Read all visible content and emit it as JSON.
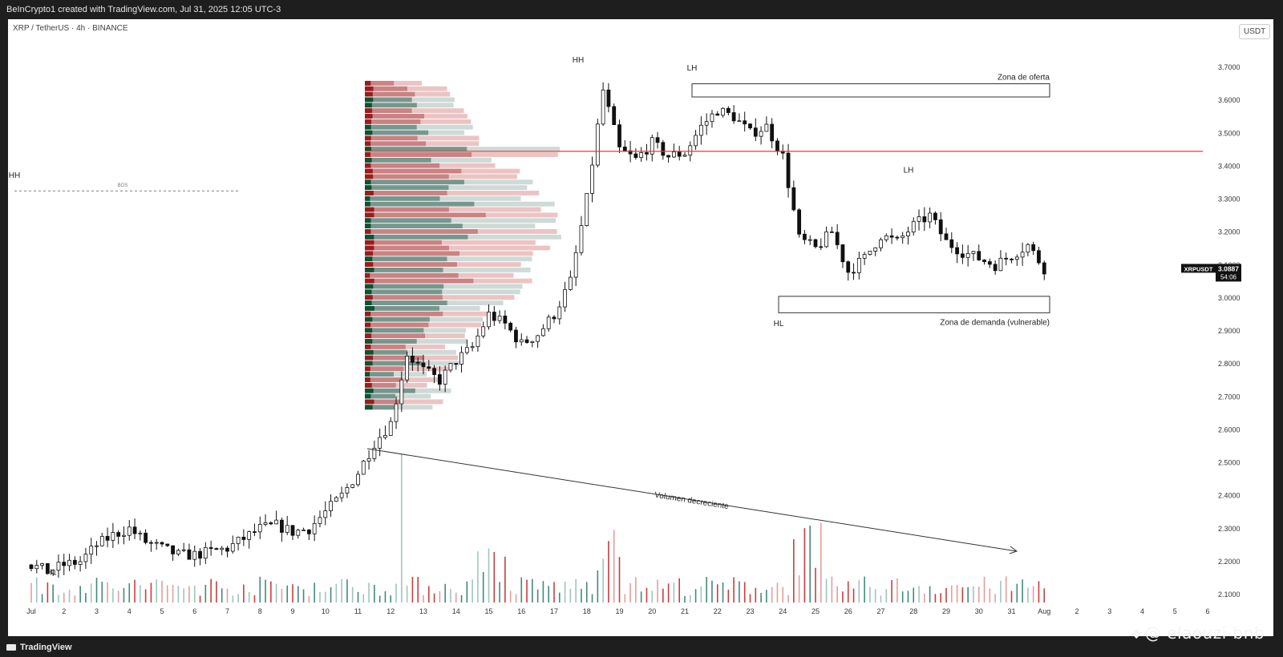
{
  "header": {
    "attribution": "BeInCrypto1 created with TradingView.com, Jul 31, 2025 12:05 UTC-3"
  },
  "symbol": {
    "label": "XRP / TetherUS · 4h · BINANCE",
    "currency_button": "USDT"
  },
  "price_tag": {
    "ticker": "XRPUSDT",
    "price": "3.0887",
    "countdown": "54:06"
  },
  "footer": {
    "brand": "TradingView"
  },
  "watermark": {
    "text": "@ elaouzi-bnb",
    "icon": "sparkle-icon"
  },
  "colors": {
    "up": "#2e7d6e",
    "down": "#c62828",
    "candle_body": "#111111",
    "resistance_line": "#e53935",
    "profile_green_dark": "#0f5132",
    "profile_red_dark": "#9b1c1c"
  },
  "chart_data": {
    "type": "candlestick",
    "timeframe": "4h",
    "yaxis": {
      "ticks": [
        "3.7000",
        "3.6000",
        "3.5000",
        "3.4000",
        "3.3000",
        "3.2000",
        "3.1000",
        "3.0000",
        "2.9000",
        "2.8000",
        "2.7000",
        "2.6000",
        "2.5000",
        "2.4000",
        "2.3000",
        "2.2000",
        "2.1000"
      ],
      "range": [
        2.08,
        3.72
      ]
    },
    "xaxis": {
      "ticks": [
        "Jul",
        "2",
        "3",
        "4",
        "5",
        "6",
        "7",
        "8",
        "9",
        "10",
        "11",
        "12",
        "13",
        "14",
        "15",
        "16",
        "17",
        "18",
        "19",
        "20",
        "21",
        "22",
        "23",
        "24",
        "25",
        "26",
        "27",
        "28",
        "29",
        "30",
        "31",
        "Aug",
        "2",
        "3",
        "4",
        "5",
        "6"
      ],
      "range_days": [
        0,
        37.5
      ]
    },
    "price_close_approx": [
      [
        0.0,
        2.19
      ],
      [
        0.5,
        2.17
      ],
      [
        1.0,
        2.19
      ],
      [
        1.5,
        2.2
      ],
      [
        2.0,
        2.25
      ],
      [
        2.5,
        2.28
      ],
      [
        3.0,
        2.3
      ],
      [
        3.5,
        2.26
      ],
      [
        4.0,
        2.24
      ],
      [
        4.5,
        2.22
      ],
      [
        5.0,
        2.22
      ],
      [
        5.5,
        2.23
      ],
      [
        6.0,
        2.24
      ],
      [
        6.5,
        2.27
      ],
      [
        7.0,
        2.3
      ],
      [
        7.5,
        2.31
      ],
      [
        8.0,
        2.29
      ],
      [
        8.5,
        2.3
      ],
      [
        9.0,
        2.35
      ],
      [
        9.5,
        2.4
      ],
      [
        10.0,
        2.47
      ],
      [
        10.5,
        2.56
      ],
      [
        11.0,
        2.62
      ],
      [
        11.5,
        2.83
      ],
      [
        12.0,
        2.78
      ],
      [
        12.5,
        2.75
      ],
      [
        13.0,
        2.81
      ],
      [
        13.5,
        2.85
      ],
      [
        14.0,
        2.95
      ],
      [
        14.5,
        2.92
      ],
      [
        15.0,
        2.86
      ],
      [
        15.5,
        2.89
      ],
      [
        16.0,
        2.95
      ],
      [
        16.5,
        3.05
      ],
      [
        17.0,
        3.3
      ],
      [
        17.5,
        3.63
      ],
      [
        18.0,
        3.45
      ],
      [
        18.5,
        3.42
      ],
      [
        19.0,
        3.47
      ],
      [
        19.5,
        3.43
      ],
      [
        20.0,
        3.44
      ],
      [
        20.5,
        3.52
      ],
      [
        21.0,
        3.57
      ],
      [
        21.5,
        3.55
      ],
      [
        22.0,
        3.5
      ],
      [
        22.5,
        3.52
      ],
      [
        23.0,
        3.43
      ],
      [
        23.5,
        3.18
      ],
      [
        24.0,
        3.15
      ],
      [
        24.5,
        3.2
      ],
      [
        25.0,
        3.08
      ],
      [
        25.5,
        3.12
      ],
      [
        26.0,
        3.19
      ],
      [
        26.5,
        3.17
      ],
      [
        27.0,
        3.22
      ],
      [
        27.5,
        3.25
      ],
      [
        28.0,
        3.17
      ],
      [
        28.5,
        3.14
      ],
      [
        29.0,
        3.12
      ],
      [
        29.5,
        3.1
      ],
      [
        30.0,
        3.13
      ],
      [
        30.5,
        3.16
      ],
      [
        31.0,
        3.09
      ]
    ],
    "volume_profile": {
      "price_range": [
        2.66,
        3.66
      ],
      "rows": 60
    },
    "annotations": [
      {
        "label": "HH"
      },
      {
        "label": "HL"
      },
      {
        "label": "BOS"
      },
      {
        "label": "HH"
      },
      {
        "label": "LH"
      },
      {
        "label": "LH"
      },
      {
        "label": "HL"
      },
      {
        "label": "Zona de oferta",
        "price_range": [
          3.61,
          3.65
        ]
      },
      {
        "label": "Zona de demanda (vulnerable)",
        "price_range": [
          2.955,
          3.005
        ]
      },
      {
        "label": "Volumen decreciente"
      }
    ],
    "levels": [
      {
        "price": 3.445
      }
    ]
  }
}
